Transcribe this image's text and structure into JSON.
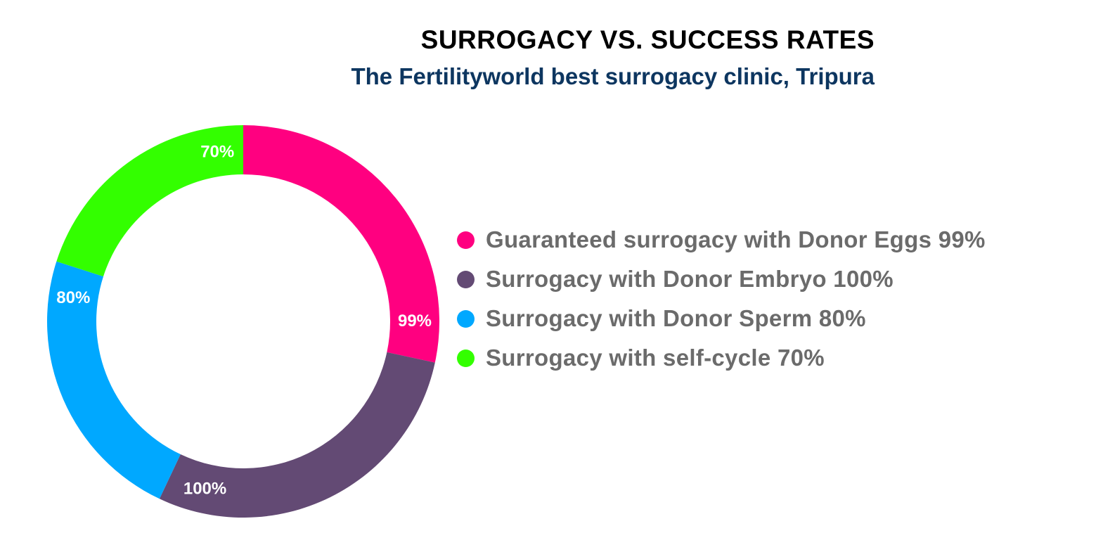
{
  "title": "SURROGACY VS. SUCCESS RATES",
  "subtitle": "The Fertilityworld best surrogacy clinic, Tripura",
  "chart_data": {
    "type": "pie",
    "variant": "donut",
    "title": "SURROGACY VS. SUCCESS RATES",
    "subtitle": "The Fertilityworld best surrogacy clinic, Tripura",
    "legend_position": "right",
    "slices": [
      {
        "name": "Guaranteed surrogacy with Donor Eggs",
        "legend": "Guaranteed surrogacy with Donor Eggs 99%",
        "value": 99,
        "label": "99%",
        "color": "#ff0080"
      },
      {
        "name": "Surrogacy with Donor Embryo",
        "legend": "Surrogacy with Donor Embryo 100%",
        "value": 100,
        "label": "100%",
        "color": "#634a74"
      },
      {
        "name": "Surrogacy with Donor Sperm",
        "legend": "Surrogacy with Donor Sperm 80%",
        "value": 80,
        "label": "80%",
        "color": "#00a8ff"
      },
      {
        "name": "Surrogacy with self-cycle",
        "legend": "Surrogacy with self-cycle 70%",
        "value": 70,
        "label": "70%",
        "color": "#33ff00"
      }
    ]
  }
}
